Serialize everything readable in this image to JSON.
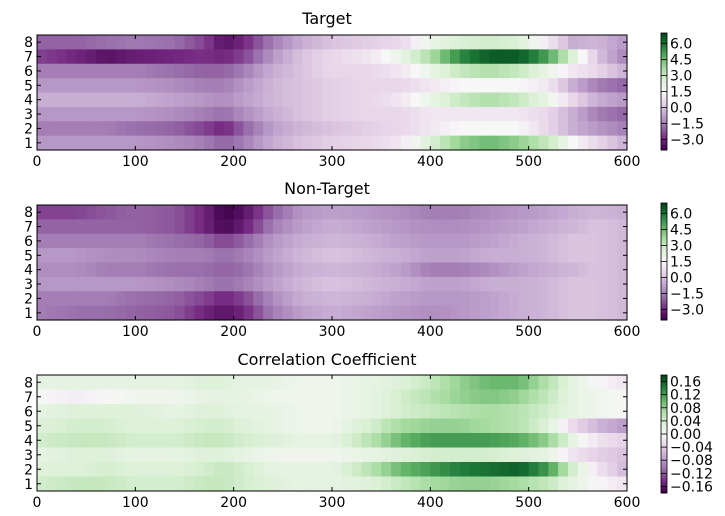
{
  "chart_data": [
    {
      "type": "heatmap",
      "title": "Target",
      "xlabel": "",
      "ylabel": "",
      "xlim": [
        0,
        600
      ],
      "x_ticks": [
        0,
        100,
        200,
        300,
        400,
        500,
        600
      ],
      "y_ticks": [
        1,
        2,
        3,
        4,
        5,
        6,
        7,
        8
      ],
      "rows": [
        1,
        2,
        3,
        4,
        5,
        6,
        7,
        8
      ],
      "colormap": "PRGn",
      "clim": [
        -4.0,
        7.0
      ],
      "colorbar_ticks": [
        "6.0",
        "4.5",
        "3.0",
        "1.5",
        "0.0",
        "−1.5",
        "−3.0"
      ],
      "grid": false,
      "profile": {
        "times": [
          0,
          40,
          70,
          100,
          140,
          170,
          190,
          210,
          240,
          270,
          300,
          340,
          370,
          400,
          430,
          460,
          490,
          520,
          545,
          570,
          600
        ],
        "channels": [
          {
            "channel": 8,
            "values": [
              -2.0,
              -2.0,
              -1.8,
              -1.6,
              -1.8,
              -2.5,
              -3.5,
              -3.0,
              -1.5,
              -0.5,
              0.0,
              0.3,
              0.5,
              2.0,
              2.5,
              2.8,
              2.5,
              1.0,
              -0.5,
              -0.3,
              -1.0
            ]
          },
          {
            "channel": 7,
            "values": [
              -2.5,
              -3.0,
              -3.5,
              -3.2,
              -3.0,
              -2.8,
              -3.0,
              -2.5,
              -1.0,
              0.0,
              0.5,
              1.0,
              2.0,
              3.5,
              5.5,
              6.5,
              6.5,
              5.0,
              2.5,
              0.0,
              -1.5
            ]
          },
          {
            "channel": 6,
            "values": [
              -1.5,
              -1.5,
              -1.5,
              -1.5,
              -1.8,
              -2.0,
              -2.0,
              -1.5,
              -0.5,
              0.0,
              0.5,
              0.5,
              1.0,
              2.0,
              3.0,
              3.5,
              3.0,
              2.0,
              1.0,
              0.5,
              -0.5
            ]
          },
          {
            "channel": 5,
            "values": [
              -1.0,
              -1.0,
              -1.0,
              -1.0,
              -1.2,
              -1.5,
              -1.5,
              -1.0,
              -0.3,
              0.0,
              0.3,
              0.5,
              0.5,
              1.0,
              1.5,
              1.5,
              1.5,
              1.0,
              -0.5,
              -1.5,
              -2.0
            ]
          },
          {
            "channel": 4,
            "values": [
              -0.5,
              -0.5,
              -0.5,
              -0.5,
              -0.8,
              -1.0,
              -1.2,
              -0.8,
              -0.3,
              0.0,
              0.3,
              0.5,
              1.0,
              2.0,
              3.0,
              3.5,
              3.0,
              2.0,
              0.5,
              -0.5,
              -1.0
            ]
          },
          {
            "channel": 3,
            "values": [
              -1.0,
              -1.0,
              -1.0,
              -1.0,
              -1.2,
              -1.5,
              -1.8,
              -1.2,
              -0.5,
              0.0,
              0.3,
              0.5,
              0.5,
              1.0,
              1.0,
              1.0,
              1.0,
              0.5,
              -0.5,
              -1.5,
              -2.0
            ]
          },
          {
            "channel": 2,
            "values": [
              -1.5,
              -1.5,
              -1.5,
              -1.8,
              -2.0,
              -2.5,
              -3.0,
              -2.0,
              -0.8,
              -0.3,
              0.0,
              0.3,
              0.5,
              1.0,
              1.5,
              1.5,
              1.5,
              0.5,
              -0.5,
              -1.0,
              -1.5
            ]
          },
          {
            "channel": 1,
            "values": [
              -1.0,
              -1.0,
              -1.0,
              -1.0,
              -1.2,
              -1.5,
              -2.0,
              -1.5,
              -0.5,
              0.0,
              0.3,
              0.5,
              1.0,
              2.5,
              4.0,
              4.5,
              4.0,
              3.0,
              1.5,
              0.5,
              -0.5
            ]
          }
        ]
      }
    },
    {
      "type": "heatmap",
      "title": "Non-Target",
      "xlabel": "",
      "ylabel": "",
      "xlim": [
        0,
        600
      ],
      "x_ticks": [
        0,
        100,
        200,
        300,
        400,
        500,
        600
      ],
      "y_ticks": [
        1,
        2,
        3,
        4,
        5,
        6,
        7,
        8
      ],
      "rows": [
        1,
        2,
        3,
        4,
        5,
        6,
        7,
        8
      ],
      "colormap": "PRGn",
      "clim": [
        -4.0,
        7.0
      ],
      "colorbar_ticks": [
        "6.0",
        "4.5",
        "3.0",
        "1.5",
        "0.0",
        "−1.5",
        "−3.0"
      ],
      "grid": false,
      "profile": {
        "times": [
          0,
          40,
          70,
          100,
          140,
          170,
          190,
          210,
          240,
          270,
          300,
          340,
          370,
          400,
          430,
          460,
          490,
          520,
          545,
          570,
          600
        ],
        "channels": [
          {
            "channel": 8,
            "values": [
              -2.5,
              -2.5,
              -2.2,
              -2.0,
              -2.2,
              -3.0,
              -4.0,
              -3.5,
              -2.0,
              -1.0,
              -0.8,
              -1.0,
              -1.2,
              -1.5,
              -1.5,
              -1.2,
              -1.0,
              -0.8,
              -0.5,
              -0.3,
              -0.5
            ]
          },
          {
            "channel": 7,
            "values": [
              -2.0,
              -2.0,
              -2.0,
              -2.0,
              -2.2,
              -3.0,
              -3.8,
              -3.2,
              -1.5,
              -0.8,
              -0.5,
              -0.8,
              -1.0,
              -1.2,
              -1.2,
              -1.0,
              -0.8,
              -0.5,
              -0.3,
              0.0,
              -0.3
            ]
          },
          {
            "channel": 6,
            "values": [
              -1.5,
              -1.5,
              -1.5,
              -1.5,
              -1.8,
              -2.0,
              -2.5,
              -2.0,
              -1.0,
              -0.5,
              -0.3,
              -0.5,
              -0.8,
              -1.0,
              -1.0,
              -0.8,
              -0.5,
              -0.3,
              0.0,
              0.0,
              -0.3
            ]
          },
          {
            "channel": 5,
            "values": [
              -1.0,
              -1.0,
              -1.2,
              -1.2,
              -1.5,
              -1.5,
              -1.8,
              -1.5,
              -0.8,
              -0.3,
              0.0,
              -0.3,
              -0.5,
              -0.8,
              -0.8,
              -0.5,
              -0.5,
              -0.3,
              0.0,
              0.0,
              -0.3
            ]
          },
          {
            "channel": 4,
            "values": [
              -1.2,
              -1.2,
              -1.5,
              -1.5,
              -1.8,
              -1.8,
              -2.0,
              -1.8,
              -1.0,
              -0.5,
              -0.3,
              -0.5,
              -0.8,
              -1.5,
              -1.5,
              -1.2,
              -0.8,
              -0.5,
              -0.3,
              0.0,
              -0.3
            ]
          },
          {
            "channel": 3,
            "values": [
              -1.0,
              -1.0,
              -1.0,
              -1.0,
              -1.2,
              -1.5,
              -1.8,
              -1.5,
              -0.8,
              -0.3,
              0.0,
              -0.3,
              -0.5,
              -0.8,
              -0.8,
              -0.5,
              -0.5,
              -0.3,
              0.0,
              0.0,
              -0.3
            ]
          },
          {
            "channel": 2,
            "values": [
              -1.5,
              -1.5,
              -1.5,
              -1.8,
              -2.0,
              -2.5,
              -3.0,
              -2.5,
              -1.2,
              -0.5,
              -0.3,
              -0.5,
              -0.8,
              -1.0,
              -1.0,
              -0.8,
              -0.5,
              -0.3,
              0.0,
              0.0,
              -0.3
            ]
          },
          {
            "channel": 1,
            "values": [
              -1.5,
              -1.8,
              -1.8,
              -2.0,
              -2.2,
              -3.0,
              -3.5,
              -3.0,
              -1.5,
              -0.8,
              -0.5,
              -0.8,
              -1.0,
              -1.2,
              -1.0,
              -0.8,
              -0.5,
              -0.3,
              0.0,
              0.0,
              -0.3
            ]
          }
        ]
      }
    },
    {
      "type": "heatmap",
      "title": "Correlation Coefficient",
      "xlabel": "",
      "ylabel": "",
      "xlim": [
        0,
        600
      ],
      "x_ticks": [
        0,
        100,
        200,
        300,
        400,
        500,
        600
      ],
      "y_ticks": [
        1,
        2,
        3,
        4,
        5,
        6,
        7,
        8
      ],
      "rows": [
        1,
        2,
        3,
        4,
        5,
        6,
        7,
        8
      ],
      "colormap": "PRGn",
      "clim": [
        -0.18,
        0.18
      ],
      "colorbar_ticks": [
        "0.16",
        "0.12",
        "0.08",
        "0.04",
        "0.00",
        "−0.04",
        "−0.08",
        "−0.12",
        "−0.16"
      ],
      "grid": false,
      "profile": {
        "times": [
          0,
          40,
          70,
          100,
          140,
          170,
          190,
          210,
          240,
          270,
          300,
          340,
          370,
          400,
          430,
          460,
          490,
          520,
          545,
          570,
          600
        ],
        "channels": [
          {
            "channel": 8,
            "values": [
              0.02,
              0.02,
              0.02,
              0.02,
              0.02,
              0.03,
              0.03,
              0.02,
              0.02,
              0.01,
              0.01,
              0.02,
              0.03,
              0.05,
              0.08,
              0.1,
              0.1,
              0.06,
              0.02,
              0.0,
              -0.02
            ]
          },
          {
            "channel": 7,
            "values": [
              0.0,
              -0.01,
              0.0,
              0.01,
              0.01,
              0.02,
              0.02,
              0.02,
              0.01,
              0.01,
              0.01,
              0.02,
              0.04,
              0.06,
              0.08,
              0.09,
              0.08,
              0.05,
              0.02,
              0.01,
              0.0
            ]
          },
          {
            "channel": 6,
            "values": [
              0.02,
              0.03,
              0.03,
              0.03,
              0.02,
              0.03,
              0.03,
              0.02,
              0.02,
              0.01,
              0.01,
              0.02,
              0.04,
              0.05,
              0.06,
              0.07,
              0.06,
              0.04,
              0.02,
              0.01,
              0.0
            ]
          },
          {
            "channel": 5,
            "values": [
              0.03,
              0.04,
              0.04,
              0.03,
              0.03,
              0.04,
              0.04,
              0.03,
              0.02,
              0.01,
              0.01,
              0.04,
              0.07,
              0.08,
              0.08,
              0.07,
              0.06,
              0.03,
              -0.03,
              -0.06,
              -0.08
            ]
          },
          {
            "channel": 4,
            "values": [
              0.04,
              0.05,
              0.05,
              0.04,
              0.04,
              0.05,
              0.05,
              0.04,
              0.03,
              0.02,
              0.02,
              0.06,
              0.1,
              0.12,
              0.12,
              0.12,
              0.11,
              0.08,
              0.02,
              -0.02,
              -0.04
            ]
          },
          {
            "channel": 3,
            "values": [
              0.02,
              0.03,
              0.03,
              0.02,
              0.02,
              0.03,
              0.03,
              0.02,
              0.01,
              0.01,
              0.01,
              0.02,
              0.03,
              0.04,
              0.04,
              0.04,
              0.03,
              0.02,
              -0.02,
              -0.04,
              -0.05
            ]
          },
          {
            "channel": 2,
            "values": [
              0.03,
              0.03,
              0.04,
              0.03,
              0.03,
              0.04,
              0.05,
              0.04,
              0.02,
              0.02,
              0.02,
              0.06,
              0.1,
              0.12,
              0.14,
              0.15,
              0.16,
              0.12,
              0.04,
              -0.02,
              -0.06
            ]
          },
          {
            "channel": 1,
            "values": [
              0.04,
              0.05,
              0.05,
              0.04,
              0.04,
              0.05,
              0.05,
              0.04,
              0.03,
              0.02,
              0.02,
              0.03,
              0.05,
              0.07,
              0.08,
              0.08,
              0.07,
              0.05,
              0.02,
              0.0,
              -0.02
            ]
          }
        ]
      }
    }
  ]
}
